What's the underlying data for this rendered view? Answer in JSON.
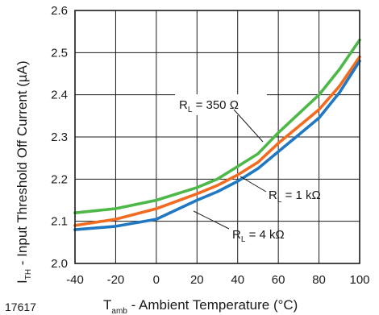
{
  "chart_data": {
    "type": "line",
    "xlabel": {
      "main": "T",
      "sub": "amb",
      "rest": " - Ambient Temperature (°C)"
    },
    "ylabel": {
      "main": "I",
      "sub": "TH",
      "rest": " - Input Threshold Off Current (µA)"
    },
    "figure_id": "17617",
    "xlim": [
      -40,
      100
    ],
    "ylim": [
      2.0,
      2.6
    ],
    "xticks": [
      -40,
      -20,
      0,
      20,
      40,
      60,
      80,
      100
    ],
    "xtick_labels": [
      "-40",
      "-20",
      "0",
      "20",
      "40",
      "60",
      "80",
      "100"
    ],
    "yticks": [
      2.0,
      2.1,
      2.2,
      2.3,
      2.4,
      2.5,
      2.6
    ],
    "ytick_labels": [
      "2.0",
      "2.1",
      "2.2",
      "2.3",
      "2.4",
      "2.5",
      "2.6"
    ],
    "grid": true,
    "series": [
      {
        "key": "r350",
        "label": {
          "main": "R",
          "sub": "L",
          "rest": " = 350 Ω"
        },
        "color": "#4db848",
        "points": [
          [
            -40,
            2.12
          ],
          [
            -20,
            2.13
          ],
          [
            0,
            2.15
          ],
          [
            20,
            2.18
          ],
          [
            30,
            2.2
          ],
          [
            40,
            2.23
          ],
          [
            50,
            2.26
          ],
          [
            60,
            2.31
          ],
          [
            70,
            2.355
          ],
          [
            80,
            2.4
          ],
          [
            90,
            2.46
          ],
          [
            100,
            2.53
          ]
        ]
      },
      {
        "key": "r1k",
        "label": {
          "main": "R",
          "sub": "L",
          "rest": " = 1 kΩ"
        },
        "color": "#f26b21",
        "points": [
          [
            -40,
            2.09
          ],
          [
            -20,
            2.105
          ],
          [
            0,
            2.13
          ],
          [
            20,
            2.165
          ],
          [
            30,
            2.185
          ],
          [
            40,
            2.21
          ],
          [
            50,
            2.24
          ],
          [
            60,
            2.285
          ],
          [
            70,
            2.325
          ],
          [
            80,
            2.365
          ],
          [
            90,
            2.42
          ],
          [
            100,
            2.49
          ]
        ]
      },
      {
        "key": "r4k",
        "label": {
          "main": "R",
          "sub": "L",
          "rest": " = 4 kΩ"
        },
        "color": "#1f78c1",
        "points": [
          [
            -40,
            2.08
          ],
          [
            -20,
            2.088
          ],
          [
            0,
            2.105
          ],
          [
            20,
            2.15
          ],
          [
            30,
            2.17
          ],
          [
            40,
            2.195
          ],
          [
            50,
            2.225
          ],
          [
            60,
            2.265
          ],
          [
            70,
            2.305
          ],
          [
            80,
            2.345
          ],
          [
            90,
            2.405
          ],
          [
            100,
            2.48
          ]
        ]
      }
    ]
  }
}
